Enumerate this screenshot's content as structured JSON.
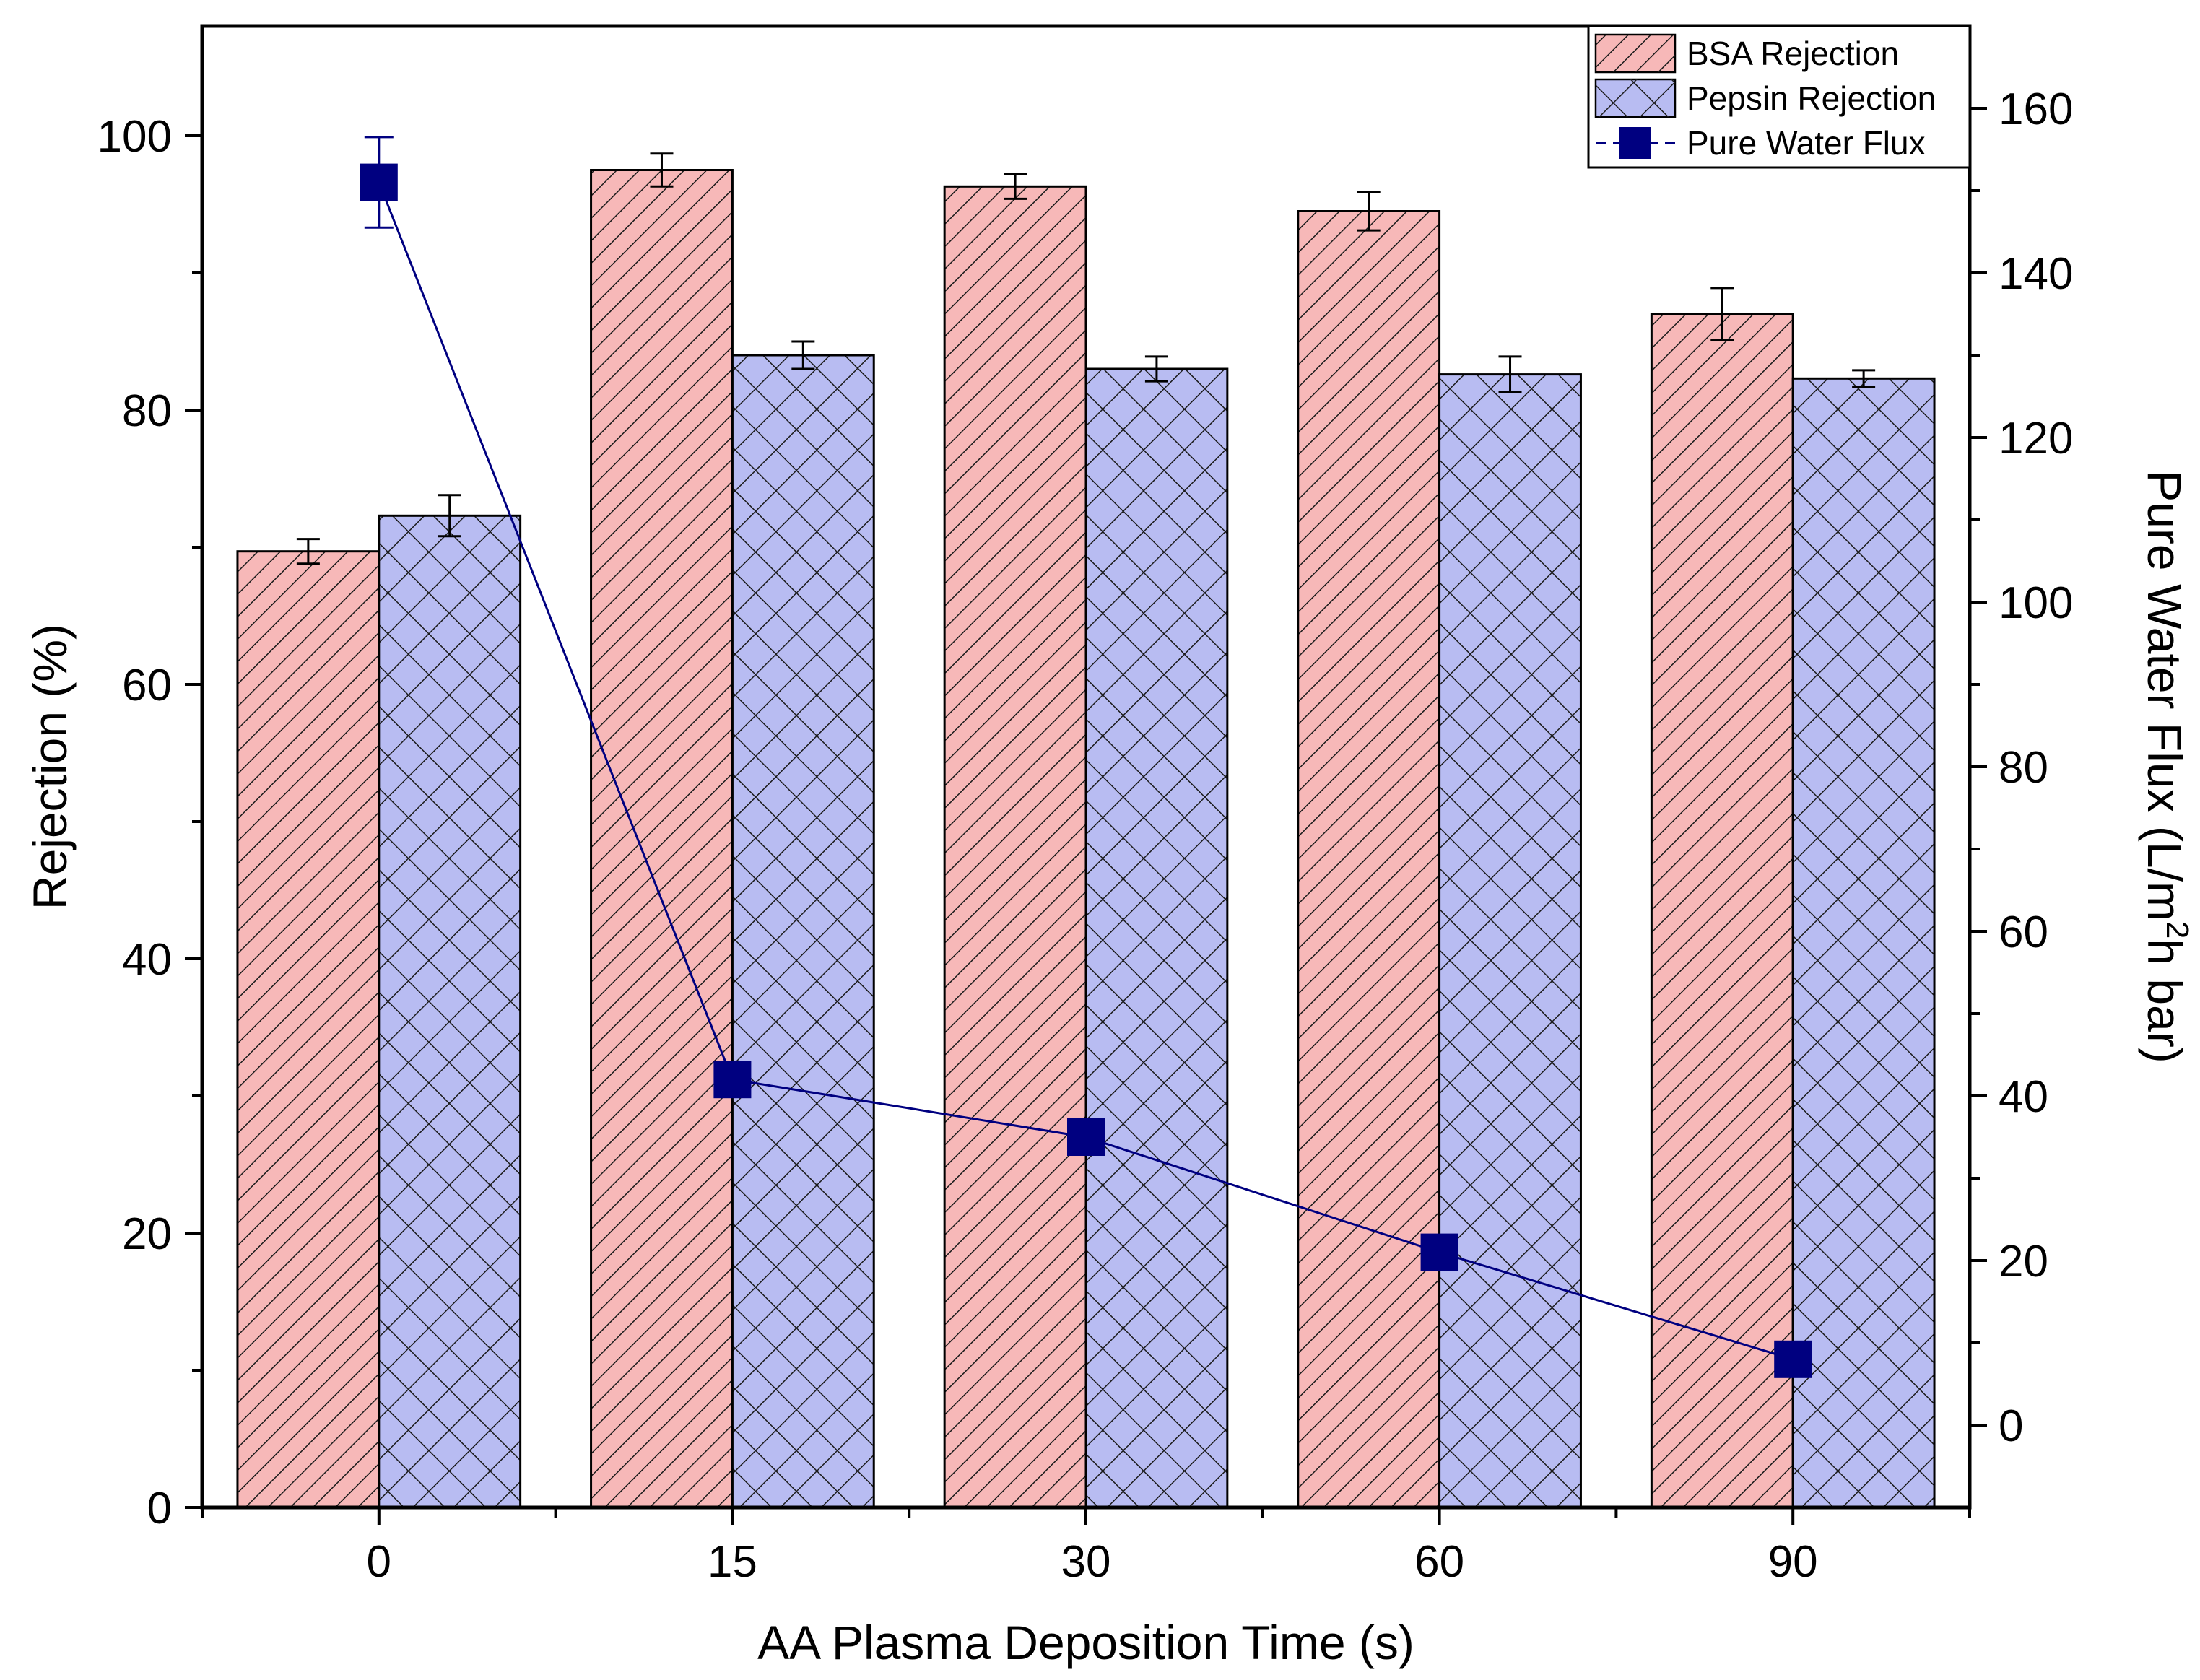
{
  "chart_data": {
    "type": "bar",
    "xlabel": "AA Plasma Deposition Time (s)",
    "ylabel": "Rejection (%)",
    "y2label_prefix": "Pure Water Flux (L/m",
    "y2label_sup": "2",
    "y2label_suffix": "h bar)",
    "ylim": [
      0,
      108
    ],
    "y2lim": [
      -10,
      170
    ],
    "yticks": [
      0,
      20,
      40,
      60,
      80,
      100
    ],
    "y2ticks": [
      0,
      20,
      40,
      60,
      80,
      100,
      120,
      140,
      160
    ],
    "categories": [
      "0",
      "15",
      "30",
      "60",
      "90"
    ],
    "series": [
      {
        "name": "BSA Rejection",
        "kind": "bar",
        "axis": "left",
        "values": [
          69.7,
          97.5,
          96.3,
          94.5,
          87.0
        ],
        "errors": [
          0.9,
          1.2,
          0.9,
          1.4,
          1.9
        ],
        "fill": "#f7b8b8",
        "pattern": "diagonal-hatch"
      },
      {
        "name": "Pepsin Rejection",
        "kind": "bar",
        "axis": "left",
        "values": [
          72.3,
          84.0,
          83.0,
          82.6,
          82.3
        ],
        "errors": [
          1.5,
          1.0,
          0.9,
          1.3,
          0.6
        ],
        "fill": "#b8bcf2",
        "pattern": "cross-hatch"
      },
      {
        "name": "Pure Water Flux",
        "kind": "line",
        "axis": "right",
        "values": [
          151.0,
          42.0,
          35.0,
          21.0,
          8.0
        ],
        "errors": [
          5.5,
          0,
          0,
          0,
          0
        ],
        "color": "#000080"
      }
    ],
    "legend": {
      "position": "top-right",
      "entries": [
        "BSA Rejection",
        "Pepsin Rejection",
        "Pure Water Flux"
      ]
    },
    "grid": false
  }
}
